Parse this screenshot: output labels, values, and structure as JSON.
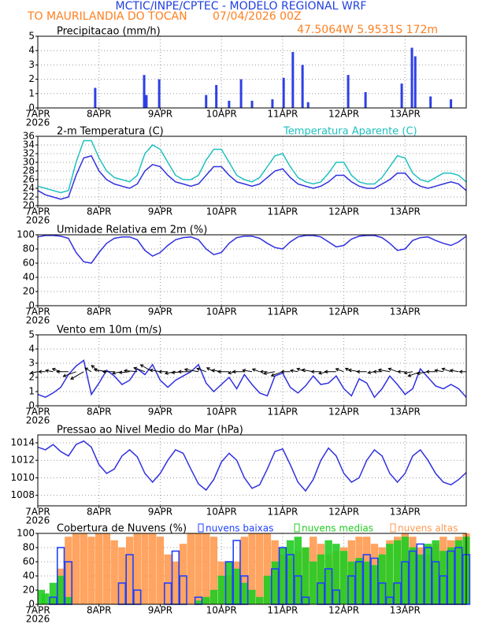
{
  "header": {
    "title": "MCTIC/INPE/CPTEC - MODELO REGIONAL WRF",
    "location": "TO MAURILANDIA DO TOCAN",
    "run": "07/04/2026 00Z",
    "coords": "47.5064W 5.9531S 172m"
  },
  "chart_data": [
    {
      "type": "bar",
      "title": "Precipitacao (mm/h)",
      "color": "#2f3fe6",
      "grid": true,
      "x": [
        22.5,
        41.7,
        42.6,
        47.6,
        66,
        70,
        75,
        79.7,
        84,
        92,
        96.4,
        100,
        103.8,
        106,
        121.7,
        128.5,
        142.7,
        146.7,
        148,
        154,
        162
      ],
      "values": [
        1.4,
        2.3,
        0.9,
        2.0,
        0.9,
        1.6,
        0.5,
        2.0,
        0.5,
        0.6,
        2.1,
        3.9,
        3.0,
        0.4,
        2.3,
        1.1,
        1.7,
        4.2,
        3.6,
        0.8,
        0.6
      ],
      "xlim": [
        0,
        168
      ],
      "xticks": [
        {
          "value": 0,
          "label": "7APR"
        },
        {
          "value": 24,
          "label": "8APR"
        },
        {
          "value": 48,
          "label": "9APR"
        },
        {
          "value": 72,
          "label": "10APR"
        },
        {
          "value": 96,
          "label": "11APR"
        },
        {
          "value": 120,
          "label": "12APR"
        },
        {
          "value": 144,
          "label": "13APR"
        }
      ],
      "xtick_year": "2026",
      "ylim": [
        0,
        5
      ],
      "yticks": [
        0,
        1,
        2,
        3,
        4,
        5
      ]
    },
    {
      "type": "line",
      "grid": true,
      "x": [
        0,
        3,
        6,
        9,
        12,
        15,
        18,
        21,
        24,
        27,
        30,
        33,
        36,
        39,
        42,
        45,
        48,
        51,
        54,
        57,
        60,
        63,
        66,
        69,
        72,
        75,
        78,
        81,
        84,
        87,
        90,
        93,
        96,
        99,
        102,
        105,
        108,
        111,
        114,
        117,
        120,
        123,
        126,
        129,
        132,
        135,
        138,
        141,
        144,
        147,
        150,
        153,
        156,
        159,
        162,
        165,
        168
      ],
      "series": [
        {
          "name": "2-m Temperatura (C)",
          "color": "#3030e0",
          "values": [
            23.5,
            22.5,
            22,
            21.5,
            22,
            27,
            31,
            31.5,
            28,
            26,
            25,
            24.5,
            24,
            25,
            28,
            29.5,
            29,
            27,
            25.5,
            25,
            24.5,
            25,
            27,
            29,
            29,
            27,
            25.5,
            25,
            24.5,
            25,
            26.5,
            28,
            28.5,
            26.5,
            25,
            24.5,
            24,
            24.5,
            25.5,
            27,
            27,
            25.5,
            24.5,
            24,
            24,
            25,
            26,
            27.5,
            27.5,
            25.5,
            24.5,
            24,
            24.5,
            25,
            25.5,
            25,
            23.5
          ]
        },
        {
          "name": "Temperatura Aparente (C)",
          "color": "#20c0c0",
          "values": [
            24.5,
            24,
            23.5,
            23,
            23.5,
            30,
            35,
            35,
            31,
            28,
            26.5,
            26,
            25.5,
            27,
            32,
            34,
            33,
            30,
            27,
            26,
            26,
            27,
            30.5,
            33,
            33,
            30,
            27,
            26,
            25.5,
            26.5,
            29,
            31.5,
            32,
            29,
            26.5,
            25.5,
            25,
            25.5,
            27.5,
            30,
            30,
            27,
            25.5,
            25,
            25,
            26.5,
            29,
            31.5,
            31,
            27.5,
            26,
            25.5,
            26.5,
            27.5,
            27.5,
            27,
            25.5
          ]
        }
      ],
      "xlim": [
        0,
        168
      ],
      "xticks": [
        {
          "value": 0,
          "label": "7APR"
        },
        {
          "value": 24,
          "label": "8APR"
        },
        {
          "value": 48,
          "label": "9APR"
        },
        {
          "value": 72,
          "label": "10APR"
        },
        {
          "value": 96,
          "label": "11APR"
        },
        {
          "value": 120,
          "label": "12APR"
        },
        {
          "value": 144,
          "label": "13APR"
        }
      ],
      "xtick_year": "2026",
      "ylim": [
        20,
        36
      ],
      "yticks": [
        20,
        22,
        24,
        26,
        28,
        30,
        32,
        34,
        36
      ]
    },
    {
      "type": "line",
      "title": "Umidade Relativa em 2m (%)",
      "color": "#3030e0",
      "grid": true,
      "x": [
        0,
        3,
        6,
        9,
        12,
        15,
        18,
        21,
        24,
        27,
        30,
        33,
        36,
        39,
        42,
        45,
        48,
        51,
        54,
        57,
        60,
        63,
        66,
        69,
        72,
        75,
        78,
        81,
        84,
        87,
        90,
        93,
        96,
        99,
        102,
        105,
        108,
        111,
        114,
        117,
        120,
        123,
        126,
        129,
        132,
        135,
        138,
        141,
        144,
        147,
        150,
        153,
        156,
        159,
        162,
        165,
        168
      ],
      "values": [
        97,
        99,
        99,
        98,
        95,
        75,
        62,
        60,
        75,
        88,
        95,
        97,
        97,
        93,
        78,
        70,
        75,
        85,
        93,
        96,
        97,
        93,
        80,
        72,
        75,
        88,
        96,
        98,
        98,
        95,
        88,
        82,
        80,
        90,
        97,
        99,
        99,
        97,
        90,
        83,
        85,
        94,
        98,
        99,
        99,
        96,
        88,
        78,
        80,
        92,
        96,
        97,
        92,
        88,
        85,
        90,
        98
      ],
      "xlim": [
        0,
        168
      ],
      "xticks": [
        {
          "value": 0,
          "label": "7APR"
        },
        {
          "value": 24,
          "label": "8APR"
        },
        {
          "value": 48,
          "label": "9APR"
        },
        {
          "value": 72,
          "label": "10APR"
        },
        {
          "value": 96,
          "label": "11APR"
        },
        {
          "value": 120,
          "label": "12APR"
        },
        {
          "value": 144,
          "label": "13APR"
        }
      ],
      "xtick_year": "2026",
      "ylim": [
        0,
        100
      ],
      "yticks": [
        0,
        20,
        40,
        60,
        80,
        100
      ]
    },
    {
      "type": "wind",
      "title": "Vento em 10m (m/s)",
      "color": "#3030e0",
      "grid": true,
      "x": [
        0,
        3,
        6,
        9,
        12,
        15,
        18,
        21,
        24,
        27,
        30,
        33,
        36,
        39,
        42,
        45,
        48,
        51,
        54,
        57,
        60,
        63,
        66,
        69,
        72,
        75,
        78,
        81,
        84,
        87,
        90,
        93,
        96,
        99,
        102,
        105,
        108,
        111,
        114,
        117,
        120,
        123,
        126,
        129,
        132,
        135,
        138,
        141,
        144,
        147,
        150,
        153,
        156,
        159,
        162,
        165,
        168
      ],
      "values": [
        0.8,
        0.6,
        0.9,
        1.3,
        2.2,
        2.8,
        3.2,
        0.8,
        1.6,
        2.5,
        2.1,
        1.5,
        1.8,
        2.6,
        2.2,
        2.9,
        1.8,
        1.3,
        1.8,
        2.1,
        2.4,
        2.9,
        1.6,
        1.0,
        1.5,
        2.0,
        1.2,
        2.2,
        1.5,
        0.9,
        0.7,
        2.1,
        2.3,
        1.3,
        0.9,
        1.4,
        2.1,
        1.5,
        1.6,
        2.1,
        1.2,
        0.7,
        1.9,
        1.6,
        0.6,
        1.2,
        2.1,
        1.5,
        0.8,
        1.2,
        2.6,
        2.0,
        1.4,
        1.2,
        1.5,
        1.2,
        0.6
      ],
      "directions": [
        80,
        90,
        100,
        110,
        90,
        70,
        60,
        120,
        130,
        100,
        90,
        80,
        85,
        95,
        110,
        120,
        100,
        90,
        80,
        85,
        90,
        100,
        110,
        120,
        100,
        90,
        80,
        90,
        100,
        110,
        90,
        80,
        70,
        90,
        100,
        110,
        100,
        90,
        80,
        90,
        110,
        120,
        100,
        90,
        80,
        90,
        100,
        110,
        90,
        80,
        70,
        80,
        90,
        100,
        110,
        100,
        90
      ],
      "xlim": [
        0,
        168
      ],
      "xticks": [
        {
          "value": 0,
          "label": "7APR"
        },
        {
          "value": 24,
          "label": "8APR"
        },
        {
          "value": 48,
          "label": "9APR"
        },
        {
          "value": 72,
          "label": "10APR"
        },
        {
          "value": 96,
          "label": "11APR"
        },
        {
          "value": 120,
          "label": "12APR"
        },
        {
          "value": 144,
          "label": "13APR"
        }
      ],
      "xtick_year": "2026",
      "ylim": [
        0,
        5
      ],
      "yticks": [
        0,
        1,
        2,
        3,
        4,
        5
      ]
    },
    {
      "type": "line",
      "title": "Pressao ao Nivel Medio do Mar (hPa)",
      "color": "#3030e0",
      "grid": true,
      "x": [
        0,
        3,
        6,
        9,
        12,
        15,
        18,
        21,
        24,
        27,
        30,
        33,
        36,
        39,
        42,
        45,
        48,
        51,
        54,
        57,
        60,
        63,
        66,
        69,
        72,
        75,
        78,
        81,
        84,
        87,
        90,
        93,
        96,
        99,
        102,
        105,
        108,
        111,
        114,
        117,
        120,
        123,
        126,
        129,
        132,
        135,
        138,
        141,
        144,
        147,
        150,
        153,
        156,
        159,
        162,
        165,
        168
      ],
      "values": [
        1013.5,
        1013.2,
        1013.8,
        1013,
        1012.5,
        1013.8,
        1014.2,
        1013.5,
        1011.5,
        1010.5,
        1011,
        1012.5,
        1013.2,
        1012.4,
        1010.5,
        1009.5,
        1010.5,
        1012,
        1013.2,
        1012.8,
        1011,
        1009.3,
        1008.6,
        1009.8,
        1011.8,
        1012.8,
        1012,
        1010,
        1008.8,
        1009.2,
        1011,
        1013,
        1013.3,
        1011.5,
        1009.5,
        1008.5,
        1009.8,
        1012,
        1013.4,
        1012.5,
        1010.5,
        1009.5,
        1010,
        1012,
        1013.2,
        1012.5,
        1010.5,
        1009.5,
        1010.5,
        1012.5,
        1013.2,
        1012,
        1010.5,
        1009.5,
        1009.2,
        1009.8,
        1010.6
      ],
      "xlim": [
        0,
        168
      ],
      "xticks": [
        {
          "value": 0,
          "label": "7APR"
        },
        {
          "value": 24,
          "label": "8APR"
        },
        {
          "value": 48,
          "label": "9APR"
        },
        {
          "value": 72,
          "label": "10APR"
        },
        {
          "value": 96,
          "label": "11APR"
        },
        {
          "value": 120,
          "label": "12APR"
        },
        {
          "value": 144,
          "label": "13APR"
        }
      ],
      "xtick_year": "2026",
      "ylim": [
        1006.8,
        1014.9
      ],
      "yticks": [
        1008,
        1010,
        1012,
        1014
      ]
    },
    {
      "type": "bar",
      "title": "Cobertura de Nuvens (%)",
      "grid": true,
      "x": [
        0,
        3,
        6,
        9,
        12,
        15,
        18,
        21,
        24,
        27,
        30,
        33,
        36,
        39,
        42,
        45,
        48,
        51,
        54,
        57,
        60,
        63,
        66,
        69,
        72,
        75,
        78,
        81,
        84,
        87,
        90,
        93,
        96,
        99,
        102,
        105,
        108,
        111,
        114,
        117,
        120,
        123,
        126,
        129,
        132,
        135,
        138,
        141,
        144,
        147,
        150,
        153,
        156,
        159,
        162,
        165,
        168
      ],
      "series": [
        {
          "name": "nuvens baixas",
          "color": "#2040ff",
          "filled": false,
          "values": [
            0,
            0,
            10,
            80,
            60,
            0,
            0,
            0,
            0,
            0,
            0,
            30,
            70,
            20,
            0,
            0,
            0,
            30,
            75,
            40,
            0,
            10,
            0,
            0,
            0,
            60,
            90,
            40,
            0,
            0,
            0,
            50,
            80,
            70,
            40,
            10,
            0,
            30,
            50,
            20,
            0,
            40,
            60,
            70,
            65,
            30,
            10,
            30,
            60,
            75,
            85,
            80,
            60,
            40,
            75,
            80,
            70
          ]
        },
        {
          "name": "nuvens medias",
          "color": "#22cc22",
          "filled": true,
          "values": [
            20,
            15,
            30,
            40,
            10,
            0,
            0,
            0,
            0,
            0,
            0,
            0,
            0,
            0,
            0,
            0,
            0,
            0,
            0,
            0,
            0,
            5,
            10,
            20,
            40,
            60,
            50,
            30,
            20,
            10,
            40,
            60,
            80,
            90,
            95,
            80,
            60,
            70,
            90,
            85,
            75,
            60,
            65,
            60,
            55,
            70,
            85,
            90,
            95,
            80,
            70,
            85,
            90,
            75,
            80,
            90,
            95
          ]
        },
        {
          "name": "nuvens altas",
          "color": "#ff9a50",
          "filled": true,
          "values": [
            0,
            0,
            10,
            50,
            95,
            100,
            100,
            95,
            100,
            100,
            90,
            80,
            95,
            100,
            100,
            100,
            95,
            70,
            60,
            85,
            100,
            100,
            100,
            95,
            60,
            40,
            60,
            95,
            100,
            100,
            100,
            90,
            70,
            65,
            75,
            80,
            95,
            85,
            70,
            75,
            80,
            90,
            95,
            95,
            85,
            80,
            90,
            95,
            100,
            95,
            80,
            70,
            85,
            95,
            90,
            95,
            100
          ]
        }
      ],
      "xlim": [
        0,
        168
      ],
      "xticks": [
        {
          "value": 0,
          "label": "7APR"
        },
        {
          "value": 24,
          "label": "8APR"
        },
        {
          "value": 48,
          "label": "9APR"
        },
        {
          "value": 72,
          "label": "10APR"
        },
        {
          "value": 96,
          "label": "11APR"
        },
        {
          "value": 120,
          "label": "12APR"
        },
        {
          "value": 144,
          "label": "13APR"
        }
      ],
      "xtick_year": "2026",
      "ylim": [
        0,
        100
      ],
      "yticks": [
        0,
        20,
        40,
        60,
        80,
        100
      ]
    }
  ]
}
